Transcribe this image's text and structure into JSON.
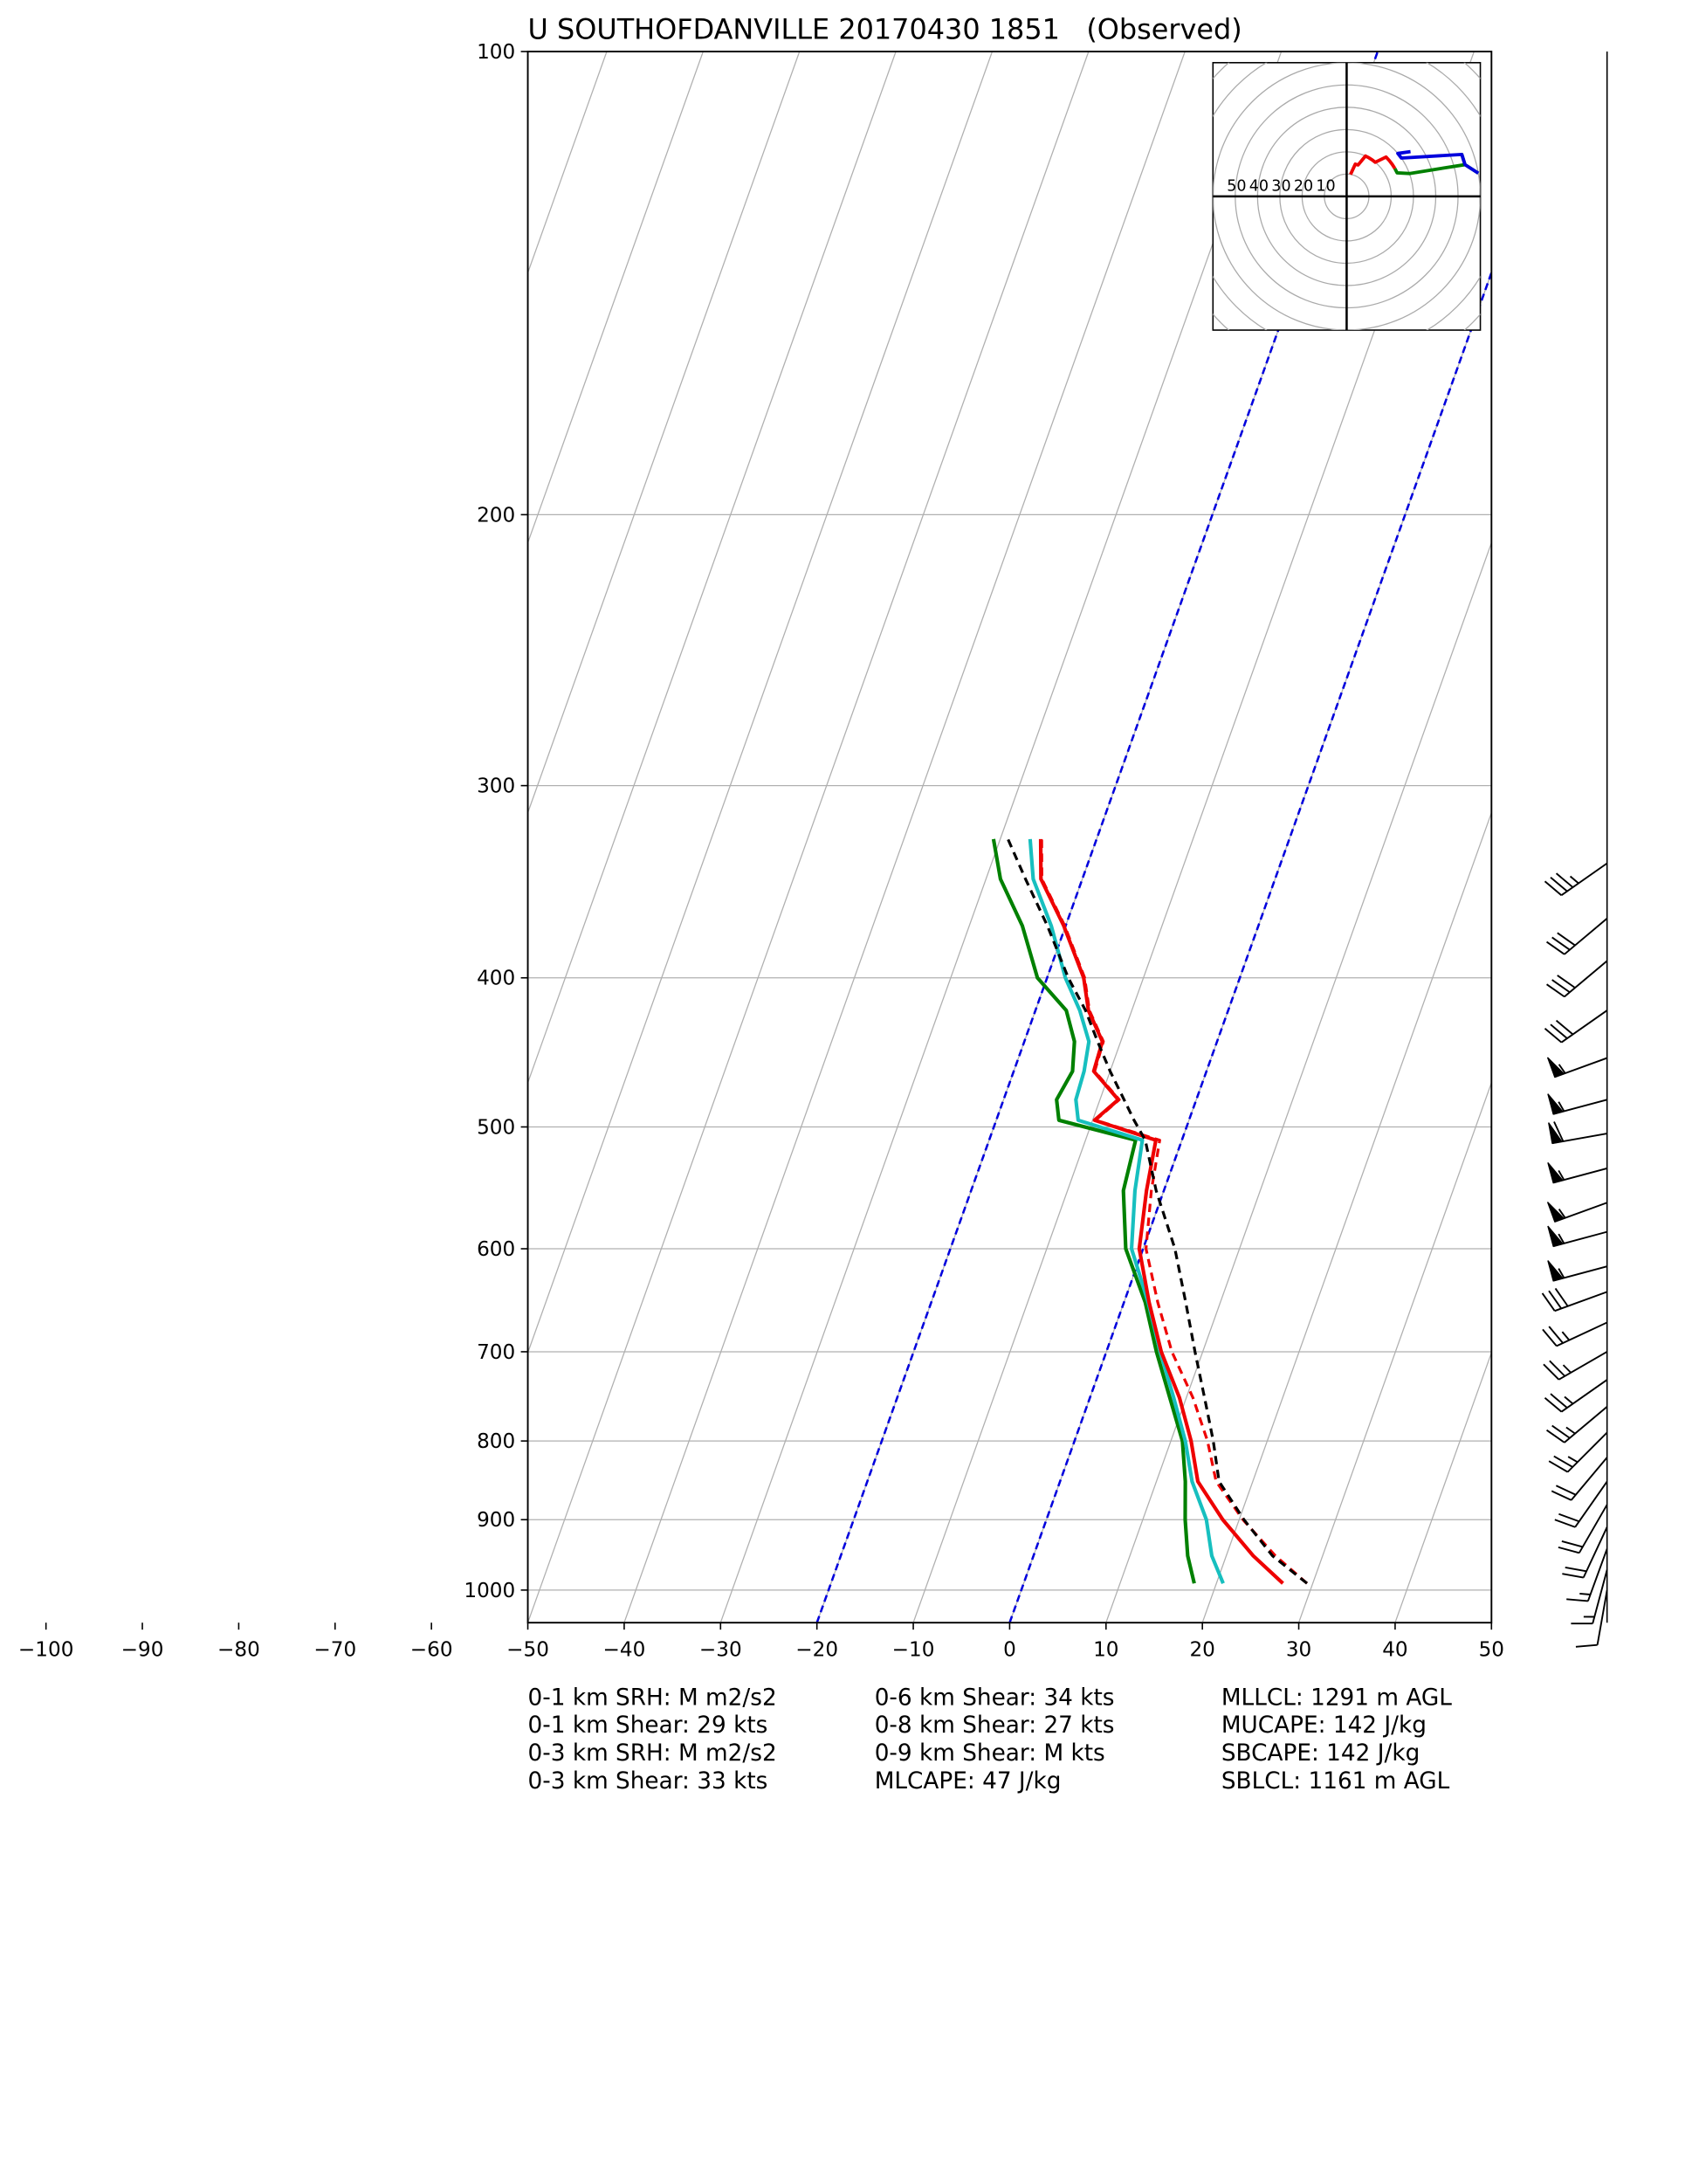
{
  "chart_data": {
    "type": "skewt",
    "title": "U SOUTHOFDANVILLE 20170430 1851   (Observed)",
    "xlim": [
      -50,
      50
    ],
    "ylim": [
      1050,
      100
    ],
    "log_y": true,
    "grid": true,
    "xticks": [
      {
        "value": -100,
        "label": "−100"
      },
      {
        "value": -90,
        "label": "−90"
      },
      {
        "value": -80,
        "label": "−80"
      },
      {
        "value": -70,
        "label": "−70"
      },
      {
        "value": -60,
        "label": "−60"
      },
      {
        "value": -50,
        "label": "−50"
      },
      {
        "value": -40,
        "label": "−40"
      },
      {
        "value": -30,
        "label": "−30"
      },
      {
        "value": -20,
        "label": "−20"
      },
      {
        "value": -10,
        "label": "−10"
      },
      0,
      10,
      20,
      30,
      40,
      50
    ],
    "yticks": [
      100,
      200,
      300,
      400,
      500,
      600,
      700,
      800,
      900,
      1000
    ],
    "special_isotherms": {
      "values": [
        -20,
        0
      ],
      "color": "#0000dd"
    },
    "pressure": [
      990,
      950,
      900,
      850,
      800,
      750,
      700,
      650,
      600,
      550,
      510,
      495,
      480,
      460,
      440,
      420,
      400,
      370,
      345,
      325
    ],
    "series": [
      {
        "color": "#008000",
        "style": "solid",
        "values": [
          17.7,
          16,
          14.4,
          13,
          11.2,
          8.3,
          5.2,
          2.2,
          -1.8,
          -4.2,
          -4.8,
          -13.5,
          -14.5,
          -13.9,
          -14.8,
          -16.8,
          -21,
          -24.5,
          -28.5,
          -30.7
        ]
      },
      {
        "color": "#17bfbf",
        "style": "solid",
        "values": [
          20.7,
          18.5,
          16.6,
          13.7,
          11.5,
          8.7,
          5.6,
          2.5,
          -1.2,
          -3,
          -4.1,
          -11.5,
          -12.5,
          -12.7,
          -13.3,
          -15.4,
          -18.1,
          -21.5,
          -25.1,
          -26.9
        ]
      },
      {
        "color": "#ee0000",
        "style": "dashed",
        "values": [
          29.4,
          25.1,
          20.4,
          16.2,
          13.8,
          10.7,
          6.8,
          3.5,
          0.3,
          -1.3,
          -2.3,
          -9.7,
          -8.0,
          -11.6,
          -11.8,
          -14.4,
          -16.1,
          -20.1,
          -24.2,
          -25.7
        ]
      },
      {
        "color": "#ee0000",
        "style": "solid",
        "values": [
          26.9,
          22.8,
          18.3,
          14.3,
          12.1,
          9.3,
          5.7,
          2.6,
          -0.4,
          -1.8,
          -2.7,
          -9.8,
          -8.1,
          -11.7,
          -11.9,
          -14.5,
          -16.2,
          -20.2,
          -24.3,
          -25.8
        ]
      },
      {
        "color": "#000000",
        "style": "dashed",
        "values": [
          29.4,
          24.8,
          20.5,
          16.5,
          14.4,
          11.9,
          9.2,
          6.4,
          3.3,
          -0.8,
          -3.8,
          -5.7,
          -7.5,
          -10,
          -12.4,
          -14.8,
          -17.8,
          -21.9,
          -25.9,
          -29.2
        ]
      }
    ],
    "winds": {
      "p": [
        1000,
        970,
        940,
        910,
        880,
        850,
        820,
        790,
        760,
        730,
        700,
        670,
        640,
        616,
        585,
        560,
        532,
        505,
        480,
        451,
        420,
        390,
        366,
        337
      ],
      "speed": [
        10,
        15,
        15,
        20,
        20,
        20,
        20,
        25,
        25,
        25,
        25,
        25,
        30,
        55,
        55,
        55,
        55,
        60,
        55,
        55,
        30,
        30,
        30,
        35
      ],
      "direction": [
        190,
        195,
        200,
        205,
        210,
        215,
        220,
        225,
        230,
        235,
        240,
        245,
        250,
        255,
        255,
        250,
        255,
        260,
        255,
        250,
        235,
        230,
        230,
        235
      ]
    },
    "hodograph": {
      "lim": 60,
      "rings": [
        10,
        20,
        30,
        40,
        50
      ],
      "layers": [
        {
          "color": "#ee0000",
          "p_from": 700
        },
        {
          "color": "#008000",
          "p_from": 500
        },
        {
          "color": "#0000dd",
          "p_from": 0
        }
      ]
    },
    "annotations": [
      [
        "0-1 km SRH: M m2/s2",
        "0-1 km Shear: 29 kts",
        "0-3 km SRH: M m2/s2",
        "0-3 km Shear: 33 kts"
      ],
      [
        "0-6 km Shear: 34 kts",
        "0-8 km Shear: 27 kts",
        "0-9 km Shear: M kts",
        "MLCAPE: 47 J/kg"
      ],
      [
        "MLLCL: 1291 m AGL",
        "MUCAPE: 142 J/kg",
        "SBCAPE: 142 J/kg",
        "SBLCL: 1161 m AGL"
      ]
    ]
  }
}
